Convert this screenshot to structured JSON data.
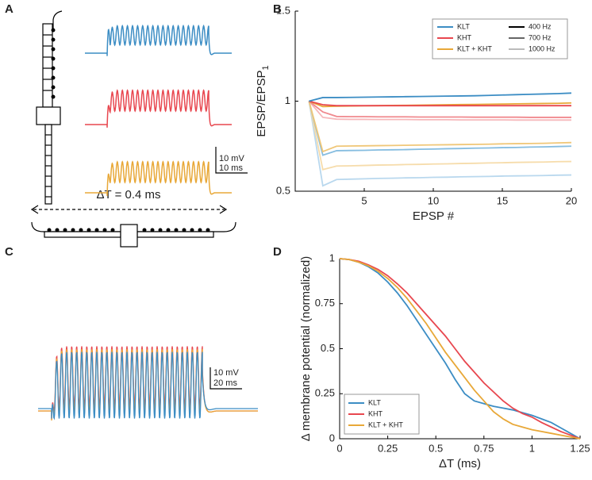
{
  "panel_labels": [
    "A",
    "B",
    "C",
    "D"
  ],
  "scale_bars": [
    {
      "v": "10 mV",
      "t": "10 ms"
    },
    {
      "v": "10 mV",
      "t": "20 ms"
    }
  ],
  "delta_t": "ΔT = 0.4 ms",
  "chart_data": [
    {
      "type": "line",
      "xlabel": "EPSP #",
      "ylabel": "EPSP/EPSP",
      "ylabel_sub": "1",
      "xlim": [
        0,
        20
      ],
      "xticks": [
        5,
        10,
        15,
        20
      ],
      "ylim": [
        0.5,
        1.5
      ],
      "yticks": [
        0.5,
        1,
        1.5
      ],
      "x": [
        1,
        2,
        3,
        4,
        5,
        6,
        7,
        8,
        9,
        10,
        11,
        12,
        13,
        14,
        15,
        16,
        17,
        18,
        19,
        20
      ],
      "legend": {
        "position": "upper right",
        "columns": [
          [
            {
              "name": "KLT",
              "color": "#3c8dc4"
            },
            {
              "name": "KHT",
              "color": "#e8474f"
            },
            {
              "name": "KLT + KHT",
              "color": "#e8a838"
            }
          ],
          [
            {
              "name": "400 Hz",
              "color": "#000000"
            },
            {
              "name": "700 Hz",
              "color": "#666666"
            },
            {
              "name": "1000 Hz",
              "color": "#bbbbbb"
            }
          ]
        ]
      },
      "series": [
        {
          "color": "#b9d8ee",
          "values": [
            1,
            0.53,
            0.565,
            0.567,
            0.569,
            0.571,
            0.572,
            0.574,
            0.575,
            0.577,
            0.578,
            0.58,
            0.581,
            0.582,
            0.584,
            0.585,
            0.586,
            0.587,
            0.589,
            0.59
          ]
        },
        {
          "color": "#f6dcab",
          "values": [
            1,
            0.62,
            0.64,
            0.641,
            0.643,
            0.645,
            0.646,
            0.648,
            0.649,
            0.651,
            0.652,
            0.654,
            0.655,
            0.657,
            0.658,
            0.66,
            0.661,
            0.662,
            0.664,
            0.665
          ]
        },
        {
          "color": "#f6b8bb",
          "values": [
            1,
            0.91,
            0.9,
            0.899,
            0.899,
            0.898,
            0.898,
            0.898,
            0.897,
            0.897,
            0.897,
            0.896,
            0.896,
            0.896,
            0.896,
            0.895,
            0.895,
            0.895,
            0.895,
            0.895
          ]
        },
        {
          "color": "#86bde0",
          "values": [
            1,
            0.7,
            0.725,
            0.726,
            0.727,
            0.729,
            0.73,
            0.731,
            0.733,
            0.734,
            0.736,
            0.737,
            0.739,
            0.74,
            0.742,
            0.743,
            0.745,
            0.746,
            0.748,
            0.75
          ]
        },
        {
          "color": "#f0c778",
          "values": [
            1,
            0.72,
            0.75,
            0.751,
            0.752,
            0.753,
            0.754,
            0.755,
            0.756,
            0.757,
            0.758,
            0.759,
            0.76,
            0.761,
            0.763,
            0.764,
            0.765,
            0.766,
            0.768,
            0.77
          ]
        },
        {
          "color": "#f08a8f",
          "values": [
            1,
            0.94,
            0.915,
            0.914,
            0.914,
            0.913,
            0.913,
            0.913,
            0.912,
            0.912,
            0.912,
            0.912,
            0.911,
            0.911,
            0.911,
            0.911,
            0.91,
            0.91,
            0.91,
            0.91
          ]
        },
        {
          "color": "#e8a838",
          "values": [
            1,
            0.97,
            0.972,
            0.973,
            0.974,
            0.975,
            0.976,
            0.977,
            0.978,
            0.979,
            0.98,
            0.981,
            0.982,
            0.983,
            0.984,
            0.985,
            0.986,
            0.987,
            0.988,
            0.99
          ]
        },
        {
          "color": "#e8474f",
          "values": [
            1,
            0.98,
            0.975,
            0.975,
            0.975,
            0.975,
            0.975,
            0.975,
            0.975,
            0.975,
            0.975,
            0.975,
            0.975,
            0.975,
            0.975,
            0.975,
            0.975,
            0.975,
            0.975,
            0.975
          ]
        },
        {
          "color": "#3c8dc4",
          "values": [
            1,
            1.02,
            1.02,
            1.021,
            1.022,
            1.023,
            1.024,
            1.025,
            1.026,
            1.027,
            1.028,
            1.029,
            1.03,
            1.032,
            1.034,
            1.036,
            1.038,
            1.04,
            1.042,
            1.045
          ]
        }
      ]
    },
    {
      "type": "line",
      "xlabel": "ΔT (ms)",
      "ylabel": "Δ membrane potential (normalized)",
      "xlim": [
        0,
        1.25
      ],
      "xticks": [
        0,
        0.25,
        0.5,
        0.75,
        1,
        1.25
      ],
      "ylim": [
        0,
        1
      ],
      "yticks": [
        0,
        0.25,
        0.5,
        0.75,
        1
      ],
      "legend_position": "lower left",
      "x": [
        0,
        0.05,
        0.1,
        0.15,
        0.2,
        0.25,
        0.3,
        0.35,
        0.4,
        0.45,
        0.5,
        0.55,
        0.6,
        0.65,
        0.7,
        0.75,
        0.8,
        0.85,
        0.9,
        0.95,
        1,
        1.05,
        1.1,
        1.15,
        1.2,
        1.25
      ],
      "series": [
        {
          "name": "KLT",
          "color": "#3c8dc4",
          "values": [
            1,
            0.995,
            0.98,
            0.955,
            0.92,
            0.87,
            0.81,
            0.74,
            0.66,
            0.58,
            0.5,
            0.42,
            0.33,
            0.25,
            0.21,
            0.195,
            0.18,
            0.17,
            0.16,
            0.145,
            0.13,
            0.11,
            0.09,
            0.06,
            0.03,
            0
          ]
        },
        {
          "name": "KHT",
          "color": "#e8474f",
          "values": [
            1,
            0.995,
            0.985,
            0.965,
            0.94,
            0.905,
            0.86,
            0.81,
            0.75,
            0.69,
            0.63,
            0.57,
            0.5,
            0.43,
            0.37,
            0.31,
            0.26,
            0.21,
            0.17,
            0.14,
            0.12,
            0.09,
            0.065,
            0.04,
            0.02,
            0
          ]
        },
        {
          "name": "KLT + KHT",
          "color": "#e8a838",
          "values": [
            1,
            0.995,
            0.98,
            0.96,
            0.93,
            0.89,
            0.84,
            0.78,
            0.71,
            0.64,
            0.56,
            0.48,
            0.41,
            0.34,
            0.27,
            0.21,
            0.15,
            0.11,
            0.08,
            0.065,
            0.05,
            0.04,
            0.03,
            0.02,
            0.01,
            0
          ]
        }
      ]
    }
  ]
}
